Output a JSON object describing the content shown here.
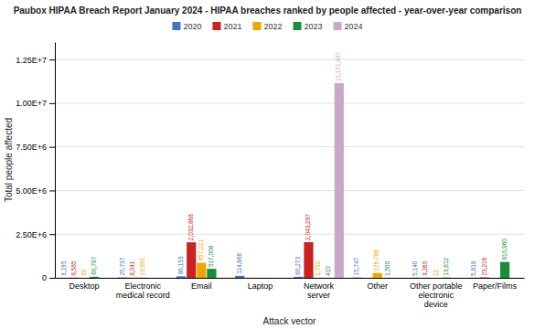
{
  "chart_data": {
    "type": "bar",
    "title": "Paubox HIPAA Breach Report January 2024 - HIPAA breaches ranked by people affected - year-over-year comparison",
    "xlabel": "Attack vector",
    "ylabel": "Total people affected",
    "categories": [
      "Desktop",
      "Electronic medical record",
      "Email",
      "Laptop",
      "Network server",
      "Other",
      "Other portable electronic device",
      "Paper/Films"
    ],
    "series": [
      {
        "name": "2020",
        "color": "#4472c4",
        "values": [
          3195,
          20737,
          86153,
          114666,
          60273,
          15747,
          5140,
          5819
        ],
        "value_labels": [
          "3,195",
          "20,737",
          "86,153",
          "114,666",
          "60,273",
          "15,747",
          "5,140",
          "5,819"
        ]
      },
      {
        "name": "2021",
        "color": "#cc2222",
        "values": [
          8585,
          8041,
          2032868,
          0,
          2043297,
          0,
          3260,
          23216
        ],
        "value_labels": [
          "8,585",
          "8,041",
          "2,032,868",
          null,
          "2,043,297",
          null,
          "3,260",
          "23,216"
        ]
      },
      {
        "name": "2022",
        "color": "#f0a500",
        "values": [
          39,
          13991,
          857221,
          0,
          1752,
          276788,
          12,
          0
        ],
        "value_labels": [
          "39",
          "13,991",
          "857,221",
          null,
          "1,752",
          "276,788",
          "12",
          null
        ]
      },
      {
        "name": "2023",
        "color": "#1a8c3e",
        "values": [
          60797,
          0,
          517008,
          0,
          410,
          1500,
          13612,
          910960
        ],
        "value_labels": [
          "60,797",
          null,
          "517,008",
          null,
          "410",
          "1,500",
          "13,612",
          "910,960"
        ]
      },
      {
        "name": "2024",
        "color": "#c9a8c8",
        "values": [
          0,
          0,
          0,
          0,
          11151487,
          0,
          0,
          0
        ],
        "value_labels": [
          null,
          null,
          null,
          null,
          "11,151,487",
          null,
          null,
          null
        ]
      }
    ],
    "ylim": [
      0,
      13500000
    ],
    "yticks": [
      0,
      {
        "value": 2500000,
        "label": "2.50E+6"
      },
      {
        "value": 5000000,
        "label": "5.00E+6"
      },
      {
        "value": 7500000,
        "label": "7.50E+6"
      },
      {
        "value": 10000000,
        "label": "1.00E+7"
      },
      {
        "value": 12500000,
        "label": "1.25E+7"
      }
    ],
    "grid": true,
    "legend": "top",
    "data_labels": true
  }
}
